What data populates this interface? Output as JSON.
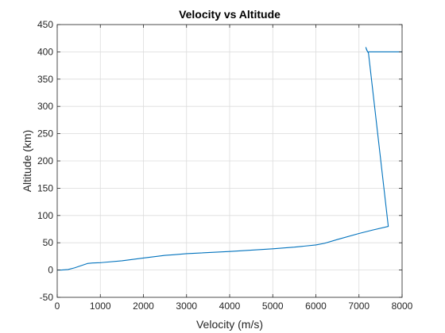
{
  "chart_data": {
    "type": "line",
    "title": "Velocity vs Altitude",
    "xlabel": "Velocity (m/s)",
    "ylabel": "Altitude (km)",
    "xlim": [
      0,
      8000
    ],
    "ylim": [
      -50,
      450
    ],
    "xticks": [
      0,
      1000,
      2000,
      3000,
      4000,
      5000,
      6000,
      7000,
      8000
    ],
    "yticks": [
      -50,
      0,
      50,
      100,
      150,
      200,
      250,
      300,
      350,
      400,
      450
    ],
    "grid": true,
    "box": true,
    "series": [
      {
        "color": "#0072bd",
        "x": [
          0,
          100,
          250,
          400,
          550,
          700,
          820,
          1000,
          1500,
          2000,
          2500,
          2700,
          3000,
          4000,
          5000,
          5500,
          6000,
          6200,
          6500,
          7000,
          7300,
          7680,
          7220,
          7180,
          7160,
          7190,
          7200,
          7420,
          7650,
          8000
        ],
        "y": [
          0,
          0,
          1,
          4,
          8,
          12,
          13,
          13.5,
          17,
          22,
          27,
          28,
          30,
          34,
          39,
          42,
          46,
          49,
          56,
          67,
          73,
          80,
          398,
          403,
          408,
          402,
          400,
          400,
          400,
          400
        ]
      }
    ]
  }
}
